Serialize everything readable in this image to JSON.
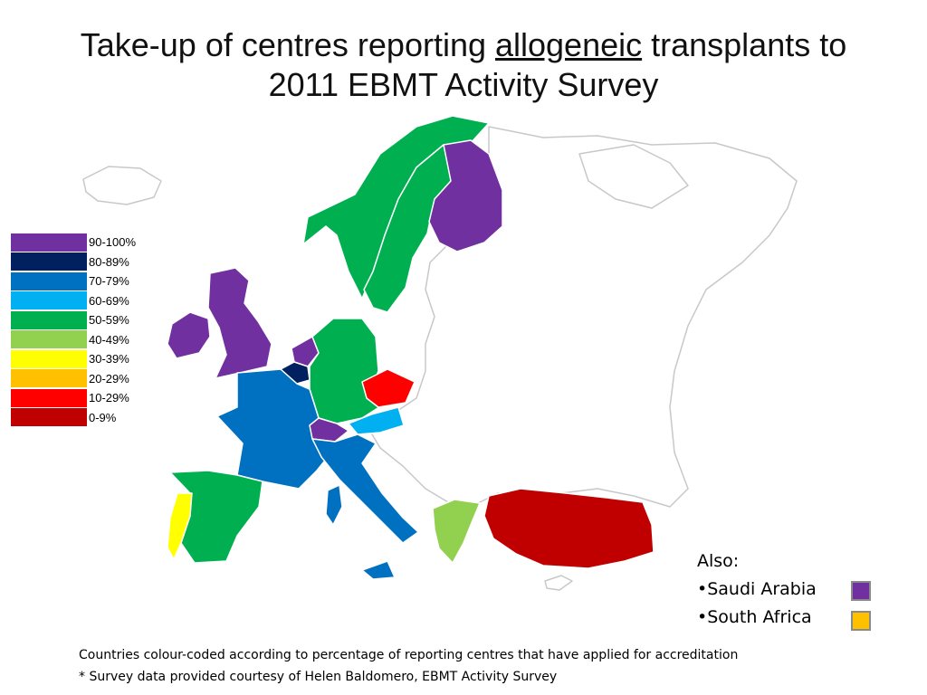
{
  "title": {
    "before": "Take-up of centres reporting ",
    "underlined": "allogeneic",
    "after": " transplants to",
    "line2": "2011 EBMT Activity Survey"
  },
  "legend": [
    {
      "label": "90-100%",
      "color": "#7030a0"
    },
    {
      "label": "80-89%",
      "color": "#002060"
    },
    {
      "label": "70-79%",
      "color": "#0070c0"
    },
    {
      "label": "60-69%",
      "color": "#00b0f0"
    },
    {
      "label": "50-59%",
      "color": "#00b050"
    },
    {
      "label": "40-49%",
      "color": "#92d050"
    },
    {
      "label": "30-39%",
      "color": "#ffff00"
    },
    {
      "label": "20-29%",
      "color": "#ffc000"
    },
    {
      "label": "10-29%",
      "color": "#ff0000"
    },
    {
      "label": "0-9%",
      "color": "#c00000"
    }
  ],
  "map_categories": {
    "Norway": "50-59%",
    "Sweden": "50-59%",
    "Finland": "90-100%",
    "United Kingdom": "90-100%",
    "Ireland": "90-100%",
    "Netherlands": "90-100%",
    "Belgium": "80-89%",
    "France": "70-79%",
    "Germany": "50-59%",
    "Czech Republic": "10-29%",
    "Austria": "60-69%",
    "Switzerland": "90-100%",
    "Italy": "70-79%",
    "Spain": "50-59%",
    "Portugal": "30-39%",
    "Greece": "40-49%",
    "Turkey": "0-9%",
    "Other": "none"
  },
  "also": {
    "heading": "Also:",
    "items": [
      {
        "label": "•Saudi Arabia",
        "color": "#7030a0"
      },
      {
        "label": "•South Africa",
        "color": "#ffc000"
      }
    ]
  },
  "footer": {
    "line1": "Countries colour-coded according to percentage of reporting centres that have applied for accreditation",
    "line2": "* Survey data provided courtesy of Helen Baldomero, EBMT Activity Survey"
  }
}
